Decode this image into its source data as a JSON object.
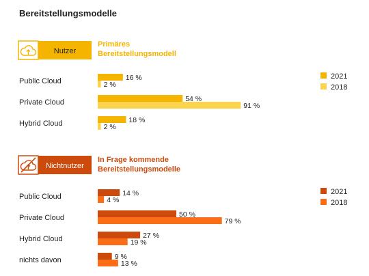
{
  "title": "Bereitstellungsmodelle",
  "colors": {
    "panel1_2021": "#f5b400",
    "panel1_2018": "#fcd34d",
    "panel2_2021": "#cc4b0c",
    "panel2_2018": "#fb6d16",
    "text": "#222222"
  },
  "chart_data": [
    {
      "type": "bar",
      "orientation": "horizontal",
      "badge_label": "Nutzer",
      "badge_icon": "cloud-upload-icon",
      "subtitle_line1": "Primäres",
      "subtitle_line2": "Bereitstellungsmodell",
      "categories": [
        "Public Cloud",
        "Private Cloud",
        "Hybrid Cloud"
      ],
      "series": [
        {
          "name": "2021",
          "values": [
            16,
            54,
            18
          ],
          "labels": [
            "16 %",
            "54 %",
            "18 %"
          ]
        },
        {
          "name": "2018",
          "values": [
            2,
            91,
            2
          ],
          "labels": [
            "2 %",
            "91 %",
            "2 %"
          ]
        }
      ],
      "xlim": [
        0,
        100
      ],
      "legend_position": "right",
      "grid": false
    },
    {
      "type": "bar",
      "orientation": "horizontal",
      "badge_label": "Nichtnutzer",
      "badge_icon": "cloud-crossed-icon",
      "subtitle_line1": "In Frage kommende",
      "subtitle_line2": "Bereitstellungsmodelle",
      "categories": [
        "Public Cloud",
        "Private Cloud",
        "Hybrid Cloud",
        "nichts davon"
      ],
      "series": [
        {
          "name": "2021",
          "values": [
            14,
            50,
            27,
            9
          ],
          "labels": [
            "14 %",
            "50 %",
            "27 %",
            "9 %"
          ]
        },
        {
          "name": "2018",
          "values": [
            4,
            79,
            19,
            13
          ],
          "labels": [
            "4 %",
            "79 %",
            "19 %",
            "13 %"
          ]
        }
      ],
      "xlim": [
        0,
        100
      ],
      "legend_position": "right",
      "grid": false
    }
  ]
}
